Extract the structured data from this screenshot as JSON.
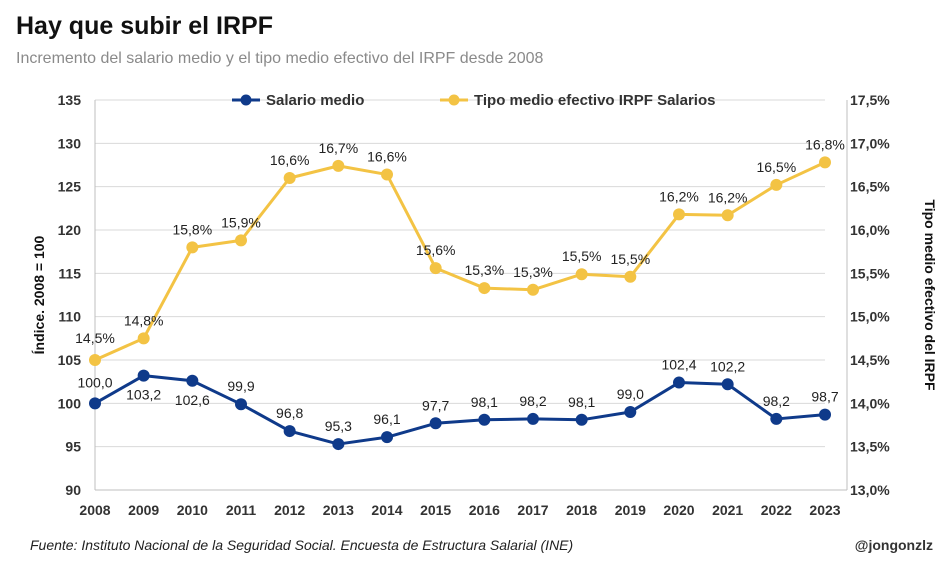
{
  "header": {
    "title": "Hay que subir el IRPF",
    "subtitle": "Incremento del salario medio y el tipo medio efectivo del IRPF desde 2008"
  },
  "footer": {
    "source": "Fuente: Instituto Nacional de la Seguridad Social. Encuesta de Estructura Salarial (INE)",
    "credit": "@jongonzlz"
  },
  "colors": {
    "salario": "#0f3a8a",
    "tipo": "#f3c344",
    "grid": "#d9d9d9",
    "axis": "#bfbfbf"
  },
  "chart_data": {
    "type": "line",
    "x": [
      "2008",
      "2009",
      "2010",
      "2011",
      "2012",
      "2013",
      "2014",
      "2015",
      "2016",
      "2017",
      "2018",
      "2019",
      "2020",
      "2021",
      "2022",
      "2023"
    ],
    "series": [
      {
        "name": "Salario medio",
        "axis": "left",
        "values": [
          100.0,
          103.2,
          102.6,
          99.9,
          96.8,
          95.3,
          96.1,
          97.7,
          98.1,
          98.2,
          98.1,
          99.0,
          102.4,
          102.2,
          98.2,
          98.7
        ],
        "labels": [
          "100,0",
          "103,2",
          "102,6",
          "99,9",
          "96,8",
          "95,3",
          "96,1",
          "97,7",
          "98,1",
          "98,2",
          "98,1",
          "99,0",
          "102,4",
          "102,2",
          "98,2",
          "98,7"
        ]
      },
      {
        "name": "Tipo medio efectivo IRPF Salarios",
        "axis": "right",
        "values": [
          14.5,
          14.75,
          15.8,
          15.88,
          16.6,
          16.74,
          16.64,
          15.56,
          15.33,
          15.31,
          15.49,
          15.46,
          16.18,
          16.17,
          16.52,
          16.78
        ],
        "labels": [
          "14,5%",
          "14,8%",
          "15,8%",
          "15,9%",
          "16,6%",
          "16,7%",
          "16,6%",
          "15,6%",
          "15,3%",
          "15,3%",
          "15,5%",
          "15,5%",
          "16,2%",
          "16,2%",
          "16,5%",
          "16,8%"
        ]
      }
    ],
    "ylabel": "Índice. 2008 = 100",
    "y2label": "Tipo medio efectivo del IRPF",
    "ylim": [
      90,
      135
    ],
    "y2lim": [
      13.0,
      17.5
    ],
    "yticks": [
      "90",
      "95",
      "100",
      "105",
      "110",
      "115",
      "120",
      "125",
      "130",
      "135"
    ],
    "y2ticks": [
      "13,0%",
      "13,5%",
      "14,0%",
      "14,5%",
      "15,0%",
      "15,5%",
      "16,0%",
      "16,5%",
      "17,0%",
      "17,5%"
    ],
    "legend": "top-center",
    "grid": true
  }
}
